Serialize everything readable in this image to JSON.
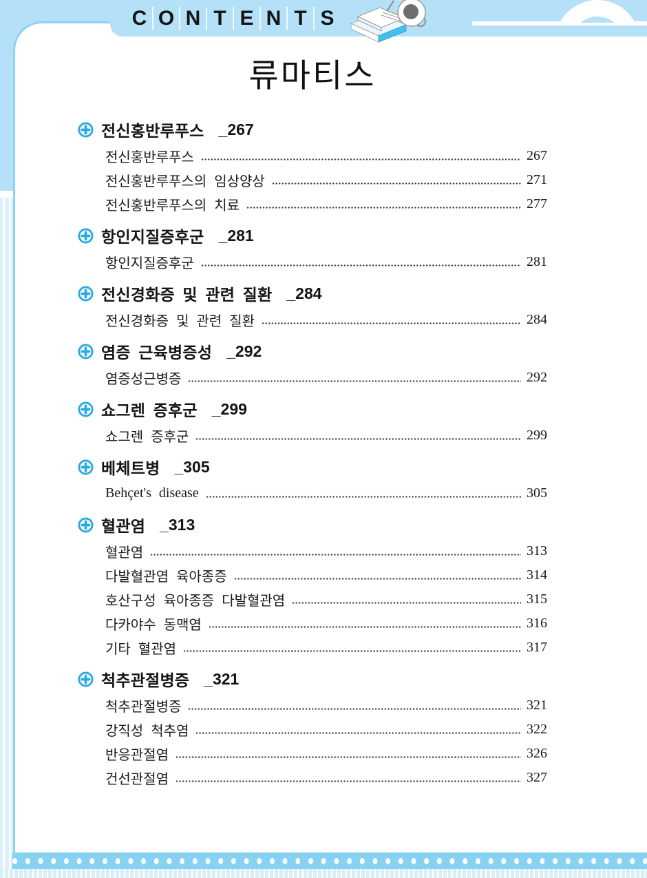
{
  "header": {
    "contents_letters": [
      "C",
      "O",
      "N",
      "T",
      "E",
      "N",
      "T",
      "S"
    ],
    "icons": [
      "book-stack-icon",
      "coffee-cup-icon",
      "arc-handle-decoration"
    ]
  },
  "colors": {
    "background_blue": "#B4E1F8",
    "page_border_blue": "#8DD1F4",
    "section_icon_blue": "#29A9E1",
    "bottom_band_blue": "#87D2F3",
    "pale_stripe_blue": "#DCEFFB",
    "text_black": "#151515"
  },
  "page": {
    "title": "류마티스"
  },
  "toc": {
    "sections": [
      {
        "title": "전신홍반루푸스",
        "page_label": "_267",
        "entries": [
          {
            "title": "전신홍반루푸스",
            "page": "267"
          },
          {
            "title": "전신홍반루푸스의 임상양상",
            "page": "271"
          },
          {
            "title": "전신홍반루푸스의 치료",
            "page": "277"
          }
        ]
      },
      {
        "title": "항인지질증후군",
        "page_label": "_281",
        "entries": [
          {
            "title": "항인지질증후군",
            "page": "281"
          }
        ]
      },
      {
        "title": "전신경화증 및 관련 질환",
        "page_label": "_284",
        "entries": [
          {
            "title": "전신경화증 및 관련 질환",
            "page": "284"
          }
        ]
      },
      {
        "title": "염증 근육병증성",
        "page_label": "_292",
        "entries": [
          {
            "title": "염증성근병증",
            "page": "292"
          }
        ]
      },
      {
        "title": "쇼그렌 증후군",
        "page_label": "_299",
        "entries": [
          {
            "title": "쇼그렌 증후군",
            "page": "299"
          }
        ]
      },
      {
        "title": "베체트병",
        "page_label": "_305",
        "entries": [
          {
            "title": "Behçet's disease",
            "page": "305"
          }
        ]
      },
      {
        "title": "혈관염",
        "page_label": "_313",
        "entries": [
          {
            "title": "혈관염",
            "page": "313"
          },
          {
            "title": "다발혈관염 육아종증",
            "page": "314"
          },
          {
            "title": "호산구성 육아종증 다발혈관염",
            "page": "315"
          },
          {
            "title": "다카야수 동맥염",
            "page": "316"
          },
          {
            "title": "기타 혈관염",
            "page": "317"
          }
        ]
      },
      {
        "title": "척추관절병증",
        "page_label": "_321",
        "entries": [
          {
            "title": "척추관절병증",
            "page": "321"
          },
          {
            "title": "강직성 척추염",
            "page": "322"
          },
          {
            "title": "반응관절염",
            "page": "326"
          },
          {
            "title": "건선관절염",
            "page": "327"
          }
        ]
      }
    ]
  }
}
